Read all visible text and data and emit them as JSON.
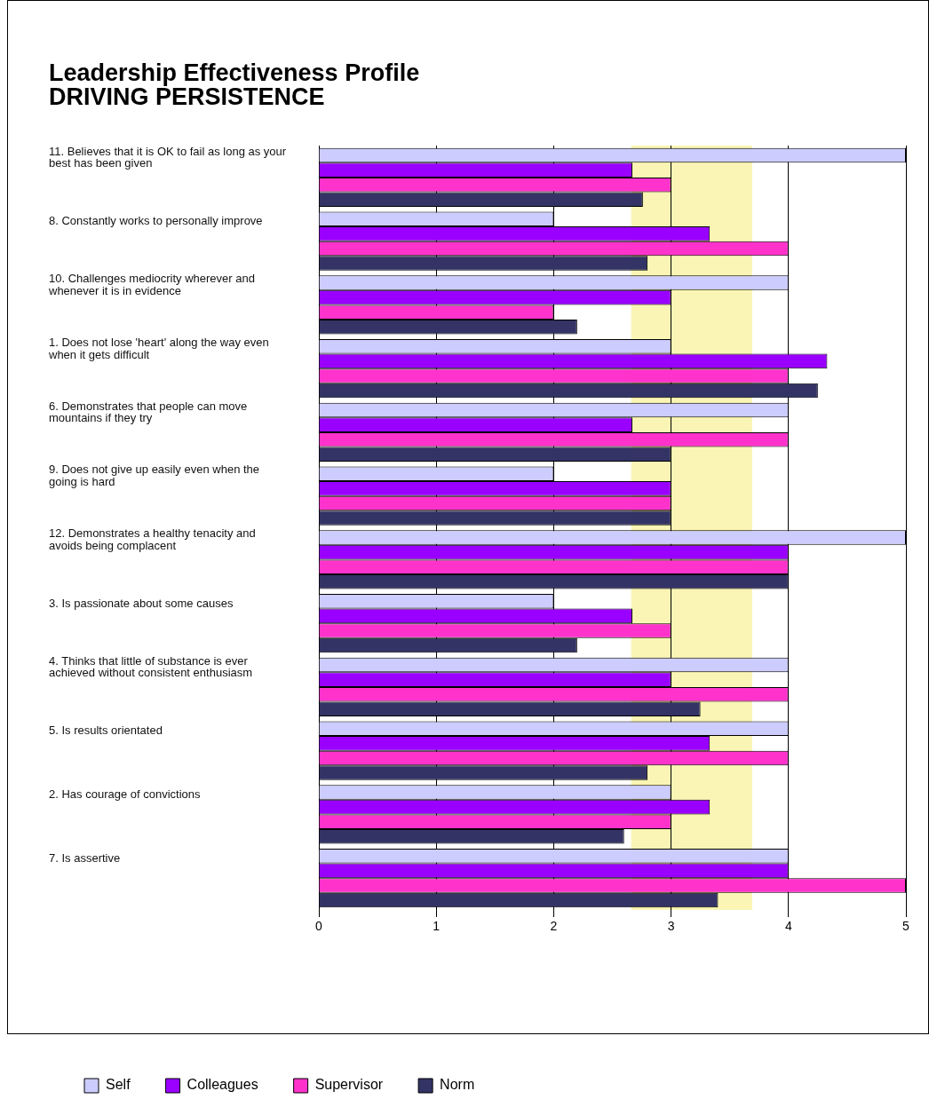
{
  "chart_data": {
    "type": "bar",
    "orientation": "horizontal",
    "title": "Leadership Effectiveness Profile",
    "subtitle": "DRIVING PERSISTENCE",
    "categories": [
      "11. Believes that it is OK to fail as long as your best has been given",
      "8. Constantly works to personally improve",
      "10. Challenges mediocrity wherever and whenever it is in evidence",
      "1. Does not lose 'heart' along the way even when it gets difficult",
      "6. Demonstrates that people can move mountains if they try",
      "9. Does not give up easily even when the going is hard",
      "12. Demonstrates a healthy tenacity and avoids being complacent",
      "3. Is passionate about some causes",
      "4. Thinks that little of substance is ever achieved without consistent enthusiasm",
      "5. Is results orientated",
      "2. Has courage of convictions",
      "7. Is assertive"
    ],
    "series": [
      {
        "name": "Self",
        "color": "#ccccff",
        "values": [
          5,
          2,
          4,
          3,
          4,
          2,
          5,
          2,
          4,
          4,
          3,
          4
        ]
      },
      {
        "name": "Colleagues",
        "color": "#9900ff",
        "values": [
          2.67,
          3.33,
          3,
          4.33,
          2.67,
          3,
          4,
          2.67,
          3,
          3.33,
          3.33,
          4
        ]
      },
      {
        "name": "Supervisor",
        "color": "#ff33cc",
        "values": [
          3,
          4,
          2,
          4,
          4,
          3,
          4,
          3,
          4,
          4,
          3,
          5
        ]
      },
      {
        "name": "Norm",
        "color": "#333366",
        "values": [
          2.76,
          2.8,
          2.2,
          4.25,
          3,
          3,
          4,
          2.2,
          3.25,
          2.8,
          2.6,
          3.4
        ]
      }
    ],
    "xlim": [
      0,
      5
    ],
    "xticks": [
      0,
      1,
      2,
      3,
      4,
      5
    ],
    "bands": [
      {
        "axis": "x",
        "from": 2.66,
        "to": 3.69,
        "color": "#faf5b4"
      }
    ],
    "grid": "x",
    "legend": "bottom"
  }
}
